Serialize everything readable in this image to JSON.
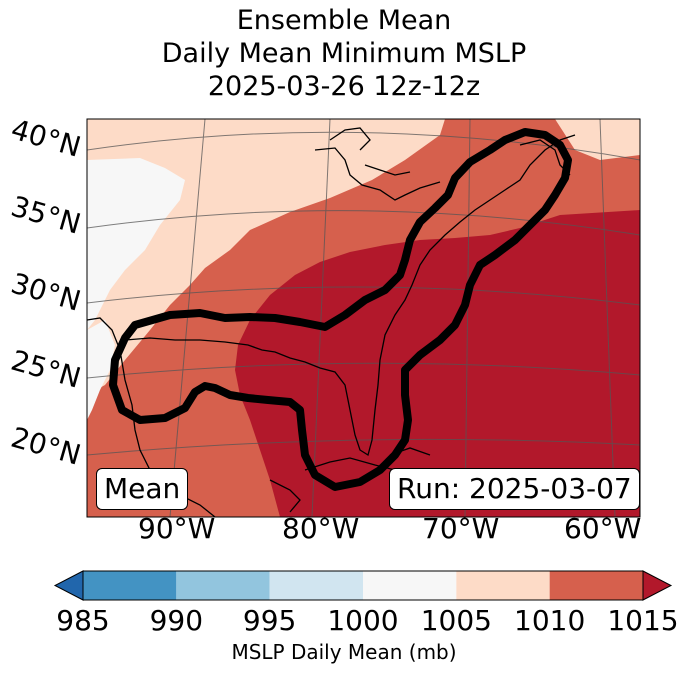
{
  "title": {
    "line1": "Ensemble Mean",
    "line2": "Daily Mean Minimum MSLP",
    "line3": "2025-03-26 12z-12z"
  },
  "map": {
    "lat_labels": [
      "40°N",
      "35°N",
      "30°N",
      "25°N",
      "20°N"
    ],
    "lon_labels": [
      "90°W",
      "80°W",
      "70°W",
      "60°W"
    ],
    "mean_box": "Mean",
    "run_box": "Run: 2025-03-07"
  },
  "colorbar": {
    "ticks": [
      "985",
      "990",
      "995",
      "1000",
      "1005",
      "1010",
      "1015"
    ],
    "label": "MSLP Daily Mean (mb)",
    "colors": [
      "#2166ac",
      "#4393c3",
      "#92c5de",
      "#d1e5f0",
      "#f7f7f7",
      "#fddbc7",
      "#d6604d",
      "#b2182b"
    ]
  }
}
